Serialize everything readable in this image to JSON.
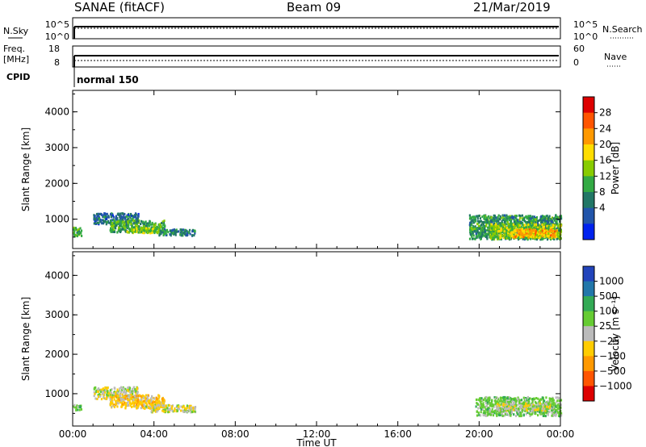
{
  "header": {
    "station": "SANAE (fitACF)",
    "beam": "Beam 09",
    "date": "21/Mar/2019"
  },
  "status": {
    "nsky_label": "N.Sky",
    "nsearch_label": "N.Search",
    "nsky_ticks": [
      "10^5",
      "10^0"
    ],
    "nsearch_ticks": [
      "10^5",
      "10^0"
    ],
    "freq_label_1": "Freq.",
    "freq_label_2": "[MHz]",
    "freq_ticks": [
      "18",
      "8"
    ],
    "nave_label": "Nave",
    "nave_ticks": [
      "60",
      "0"
    ],
    "cpid_label": "CPID",
    "cpid_value": "normal 150"
  },
  "chart_data": [
    {
      "type": "heatmap",
      "name": "power",
      "ylabel": "Slant Range [km]",
      "xlabel": "Time UT",
      "xlim": [
        0,
        24
      ],
      "ylim": [
        180,
        4600
      ],
      "yticks": [
        1000,
        2000,
        3000,
        4000
      ],
      "xtick_labels": [
        "00:00",
        "04:00",
        "08:00",
        "12:00",
        "16:00",
        "20:00",
        "00:00"
      ],
      "xtick_hours": [
        0,
        4,
        8,
        12,
        16,
        20,
        24
      ],
      "colorbar_label": "Power [dB]",
      "colorbar_ticks": [
        "28",
        "24",
        "20",
        "16",
        "12",
        "8",
        "4"
      ],
      "colorbar_colors": [
        "#dd0000",
        "#ff5500",
        "#ff9900",
        "#ffdd00",
        "#88cc00",
        "#33aa44",
        "#227766",
        "#2255aa",
        "#0022ee"
      ],
      "regions": [
        {
          "t": [
            0.0,
            0.4
          ],
          "r": [
            500,
            750
          ],
          "value": 12
        },
        {
          "t": [
            1.0,
            3.2
          ],
          "r": [
            850,
            1150
          ],
          "value": 6
        },
        {
          "t": [
            1.8,
            4.5
          ],
          "r": [
            620,
            950
          ],
          "value": 12
        },
        {
          "t": [
            2.6,
            4.2
          ],
          "r": [
            600,
            750
          ],
          "value": 16
        },
        {
          "t": [
            4.2,
            6.0
          ],
          "r": [
            520,
            700
          ],
          "value": 8
        },
        {
          "t": [
            19.5,
            24.0
          ],
          "r": [
            420,
            1100
          ],
          "value": 10
        },
        {
          "t": [
            20.5,
            24.0
          ],
          "r": [
            450,
            850
          ],
          "value": 16
        },
        {
          "t": [
            21.5,
            23.8
          ],
          "r": [
            480,
            700
          ],
          "value": 22
        }
      ]
    },
    {
      "type": "heatmap",
      "name": "velocity",
      "ylabel": "Slant Range [km]",
      "xlabel": "Time UT",
      "xlim": [
        0,
        24
      ],
      "ylim": [
        180,
        4600
      ],
      "yticks": [
        1000,
        2000,
        3000,
        4000
      ],
      "xtick_labels": [
        "00:00",
        "04:00",
        "08:00",
        "12:00",
        "16:00",
        "20:00",
        "00:00"
      ],
      "xtick_hours": [
        0,
        4,
        8,
        12,
        16,
        20,
        24
      ],
      "colorbar_label": "Velocity [m s⁻¹]",
      "colorbar_ticks": [
        "1000",
        "500",
        "100",
        "25",
        "−25",
        "−100",
        "−500",
        "−1000"
      ],
      "colorbar_colors": [
        "#2244bb",
        "#2277aa",
        "#33aa55",
        "#66cc33",
        "#bbbbbb",
        "#ffcc00",
        "#ff9900",
        "#ff5500",
        "#dd0000"
      ],
      "regions": [
        {
          "t": [
            0.0,
            0.4
          ],
          "r": [
            550,
            700
          ],
          "value": 60
        },
        {
          "t": [
            1.0,
            3.2
          ],
          "r": [
            850,
            1150
          ],
          "value": 0
        },
        {
          "t": [
            1.8,
            4.5
          ],
          "r": [
            620,
            950
          ],
          "value": -60
        },
        {
          "t": [
            3.5,
            6.0
          ],
          "r": [
            520,
            700
          ],
          "value": 0
        },
        {
          "t": [
            19.8,
            24.0
          ],
          "r": [
            420,
            900
          ],
          "value": 60
        },
        {
          "t": [
            20.8,
            23.5
          ],
          "r": [
            550,
            750
          ],
          "value": 0
        }
      ]
    }
  ]
}
